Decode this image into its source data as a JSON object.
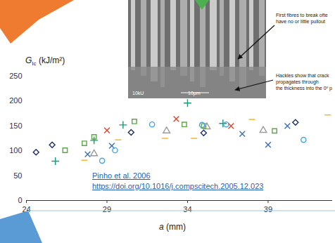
{
  "chart_data": {
    "type": "scatter",
    "xlabel": {
      "text": "a",
      "suffix": " (mm)"
    },
    "ylabel": {
      "text": "G",
      "subscript": "Ic",
      "suffix": " (kJ/m²)"
    },
    "xlim": [
      24,
      43
    ],
    "xticks": [
      24,
      29,
      34,
      39
    ],
    "ylim": [
      0,
      250
    ],
    "yticks": [
      0,
      50,
      100,
      150,
      200,
      250
    ],
    "grid": false,
    "series": [
      {
        "marker": "diamond",
        "color": "#1f2d6b",
        "x": [
          24.6,
          25.6,
          30.5,
          35.0,
          40.7
        ],
        "values": [
          97,
          112,
          137,
          136,
          157
        ]
      },
      {
        "marker": "plus",
        "color": "#1a9a7a",
        "x": [
          25.8,
          28.2,
          30.0,
          34.0,
          36.2
        ],
        "values": [
          79,
          121,
          152,
          196,
          155
        ]
      },
      {
        "marker": "square",
        "color": "#5aa845",
        "x": [
          26.4,
          27.6,
          28.2,
          30.7,
          33.8,
          35.0,
          39.4
        ],
        "values": [
          101,
          115,
          128,
          159,
          153,
          150,
          140
        ]
      },
      {
        "marker": "times",
        "color": "#3a6ec0",
        "x": [
          27.8,
          29.3,
          37.4,
          39.0,
          40.2
        ],
        "values": [
          93,
          110,
          134,
          112,
          150
        ]
      },
      {
        "marker": "triangle",
        "color": "#9a9a9a",
        "x": [
          28.2,
          32.7,
          35.2,
          38.7
        ],
        "values": [
          94,
          140,
          148,
          141
        ]
      },
      {
        "marker": "circle",
        "color": "#4aa3df",
        "x": [
          28.7,
          29.5,
          31.8,
          34.9,
          36.4,
          41.2
        ],
        "values": [
          80,
          101,
          153,
          152,
          153,
          122
        ]
      },
      {
        "marker": "dash",
        "color": "#f0b323",
        "x": [
          27.6,
          29.7,
          32.6,
          34.4,
          38.0,
          42.7
        ],
        "values": [
          81,
          122,
          125,
          125,
          163,
          172
        ]
      },
      {
        "marker": "times",
        "color": "#e0462c",
        "x": [
          29.0,
          33.3,
          36.7
        ],
        "values": [
          141,
          164,
          150
        ]
      }
    ]
  },
  "annotations": [
    {
      "lines": [
        "First fibres to break ofte",
        "have no or little pullout"
      ]
    },
    {
      "lines": [
        "Hackles show that crack",
        "propagates through",
        "the thickness into the 0º p"
      ]
    }
  ],
  "citation": {
    "lines": [
      "Pinho et al. 2006",
      "https://doi.org/10.1016/j.compscitech.2005.12.023"
    ]
  },
  "photo_labels": [
    "10kU",
    "10μm"
  ]
}
